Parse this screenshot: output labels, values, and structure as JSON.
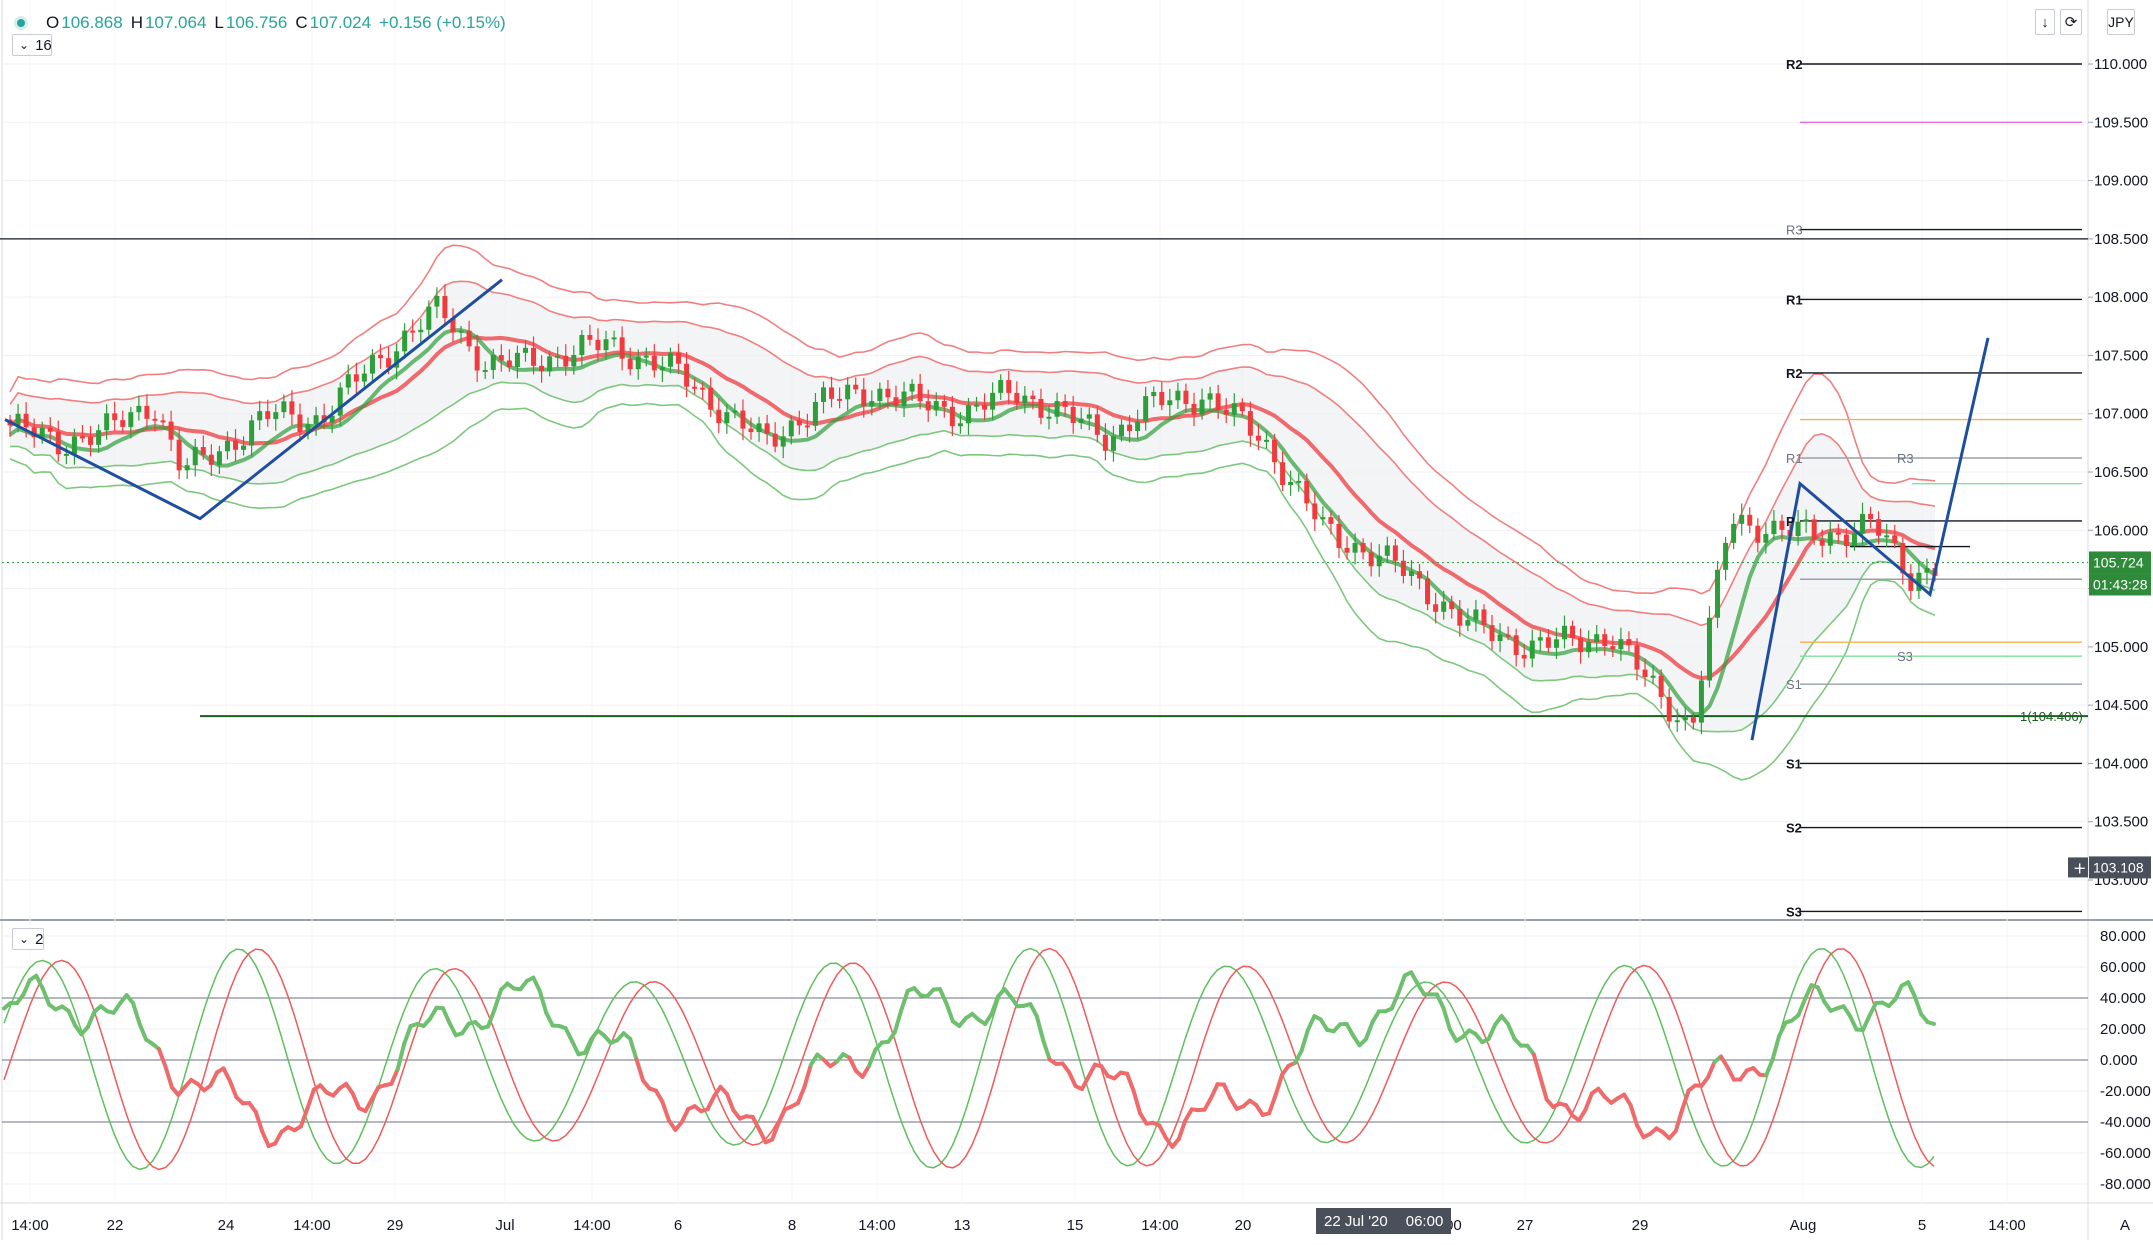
{
  "symbol_bar": {
    "o_label": "O",
    "o_value": "106.868",
    "h_label": "H",
    "h_value": "107.064",
    "l_label": "L",
    "l_value": "106.756",
    "c_label": "C",
    "c_value": "107.024",
    "change": "+0.156 (+0.15%)"
  },
  "main_pane": {
    "indicator_count": "16"
  },
  "osc_pane": {
    "indicator_count": "2"
  },
  "top_right": {
    "arrow_icon": "down-arrow-icon",
    "sync_icon": "sync-icon",
    "currency": "JPY"
  },
  "price_axis": {
    "ticks": [
      "110.000",
      "109.500",
      "109.000",
      "108.500",
      "108.000",
      "107.500",
      "107.000",
      "106.500",
      "106.000",
      "105.500",
      "105.000",
      "104.500",
      "104.000",
      "103.500",
      "103.000"
    ],
    "last_price": "105.724",
    "countdown": "01:43:28",
    "crosshair_price": "103.108"
  },
  "osc_axis": {
    "ticks": [
      "80.000",
      "60.000",
      "40.000",
      "20.000",
      "0.000",
      "-20.000",
      "-40.000",
      "-60.000",
      "-80.000"
    ]
  },
  "time_axis": {
    "labels": [
      "14:00",
      "22",
      "24",
      "14:00",
      "29",
      "Jul",
      "14:00",
      "6",
      "8",
      "14:00",
      "13",
      "15",
      "14:00",
      "20",
      "14:00",
      "27",
      "29",
      "Aug",
      "5",
      "14:00"
    ],
    "highlight_date": "22 Jul '20",
    "highlight_time": "06:00",
    "corner_label": "A"
  },
  "pivot_labels": {
    "r2_top": "R2",
    "r3_a": "R3",
    "r1_bold": "R1",
    "r2_b": "R2",
    "r1_grey": "R1",
    "r3_c": "R3",
    "p": "P",
    "s3_c": "S3",
    "s1_grey": "S1",
    "s1_bold": "S1",
    "s2": "S2",
    "s3": "S3"
  },
  "fib_label": "1(104.406)",
  "colors": {
    "up": "#2e9e3a",
    "down": "#ef3b3e",
    "teal": "#26a69a",
    "band_red": "#f08080",
    "band_green": "#7ec87e",
    "zigzag": "#1f4e9e",
    "pivot_line": "#131722",
    "magenta": "#e56de5",
    "orange": "#f6b04b",
    "mint": "#7ee0a0",
    "fib_green": "#1b5e20"
  }
}
